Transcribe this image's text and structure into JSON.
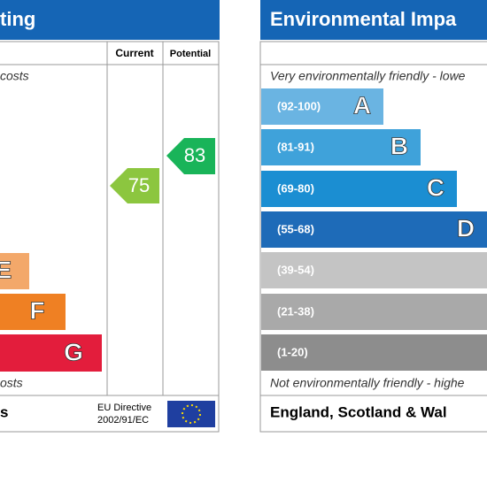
{
  "left_panel": {
    "title": "ting",
    "columns": [
      "Current",
      "Potential"
    ],
    "top_note": "costs",
    "bands": [
      {
        "letter": "E"
      },
      {
        "letter": "F"
      },
      {
        "letter": "G"
      }
    ],
    "bottom_note": "osts",
    "footer_text": "s",
    "directive": [
      "EU Directive",
      "2002/91/EC"
    ],
    "current": 75,
    "potential": 83
  },
  "right_panel": {
    "title": "Environmental Impa",
    "top_note": "Very environmentally friendly - lowe",
    "bands": [
      {
        "range": "(92-100)",
        "letter": "A"
      },
      {
        "range": "(81-91)",
        "letter": "B"
      },
      {
        "range": "(69-80)",
        "letter": "C"
      },
      {
        "range": "(55-68)",
        "letter": "D"
      },
      {
        "range": "(39-54)"
      },
      {
        "range": "(21-38)"
      },
      {
        "range": "(1-20)"
      }
    ],
    "bottom_note": "Not environmentally friendly - highe",
    "footer_text": "England, Scotland & Wal"
  }
}
